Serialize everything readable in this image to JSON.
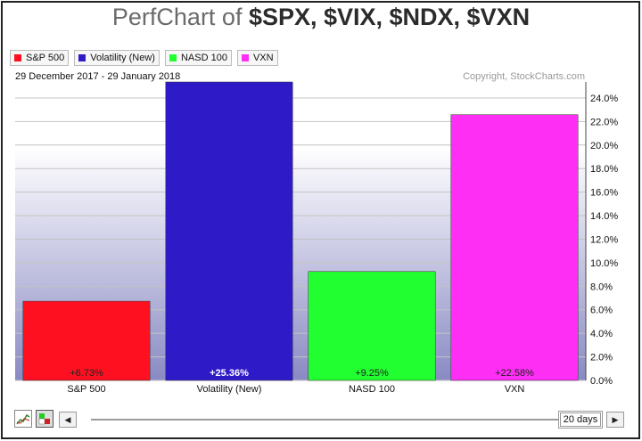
{
  "header": {
    "title_prefix": "PerfChart of ",
    "title_symbols": "$SPX, $VIX, $NDX, $VXN"
  },
  "date_range": "29 December 2017 - 29 January 2018",
  "copyright": "Copyright, StockCharts.com",
  "controls": {
    "period_label": "20 days",
    "prev_glyph": "◀",
    "next_glyph": "▶"
  },
  "chart_data": {
    "type": "bar",
    "categories": [
      "S&P 500",
      "Volatility (New)",
      "NASD 100",
      "VXN"
    ],
    "values": [
      6.73,
      25.36,
      9.25,
      22.58
    ],
    "value_labels": [
      "+6.73%",
      "+25.36%",
      "+9.25%",
      "+22.58%"
    ],
    "colors": [
      "#ff1020",
      "#2f1ac8",
      "#22ff30",
      "#ff2ef5"
    ],
    "legend": [
      {
        "label": "S&P 500",
        "color": "#ff1020"
      },
      {
        "label": "Volatility (New)",
        "color": "#2f1ac8"
      },
      {
        "label": "NASD 100",
        "color": "#22ff30"
      },
      {
        "label": "VXN",
        "color": "#ff2ef5"
      }
    ],
    "y_ticks": [
      "0.0%",
      "2.0%",
      "4.0%",
      "6.0%",
      "8.0%",
      "10.0%",
      "12.0%",
      "14.0%",
      "16.0%",
      "18.0%",
      "20.0%",
      "22.0%",
      "24.0%"
    ],
    "ylim": [
      0,
      25.36
    ],
    "y_axis_position": "right",
    "grid": true,
    "legend_position": "top-left"
  }
}
